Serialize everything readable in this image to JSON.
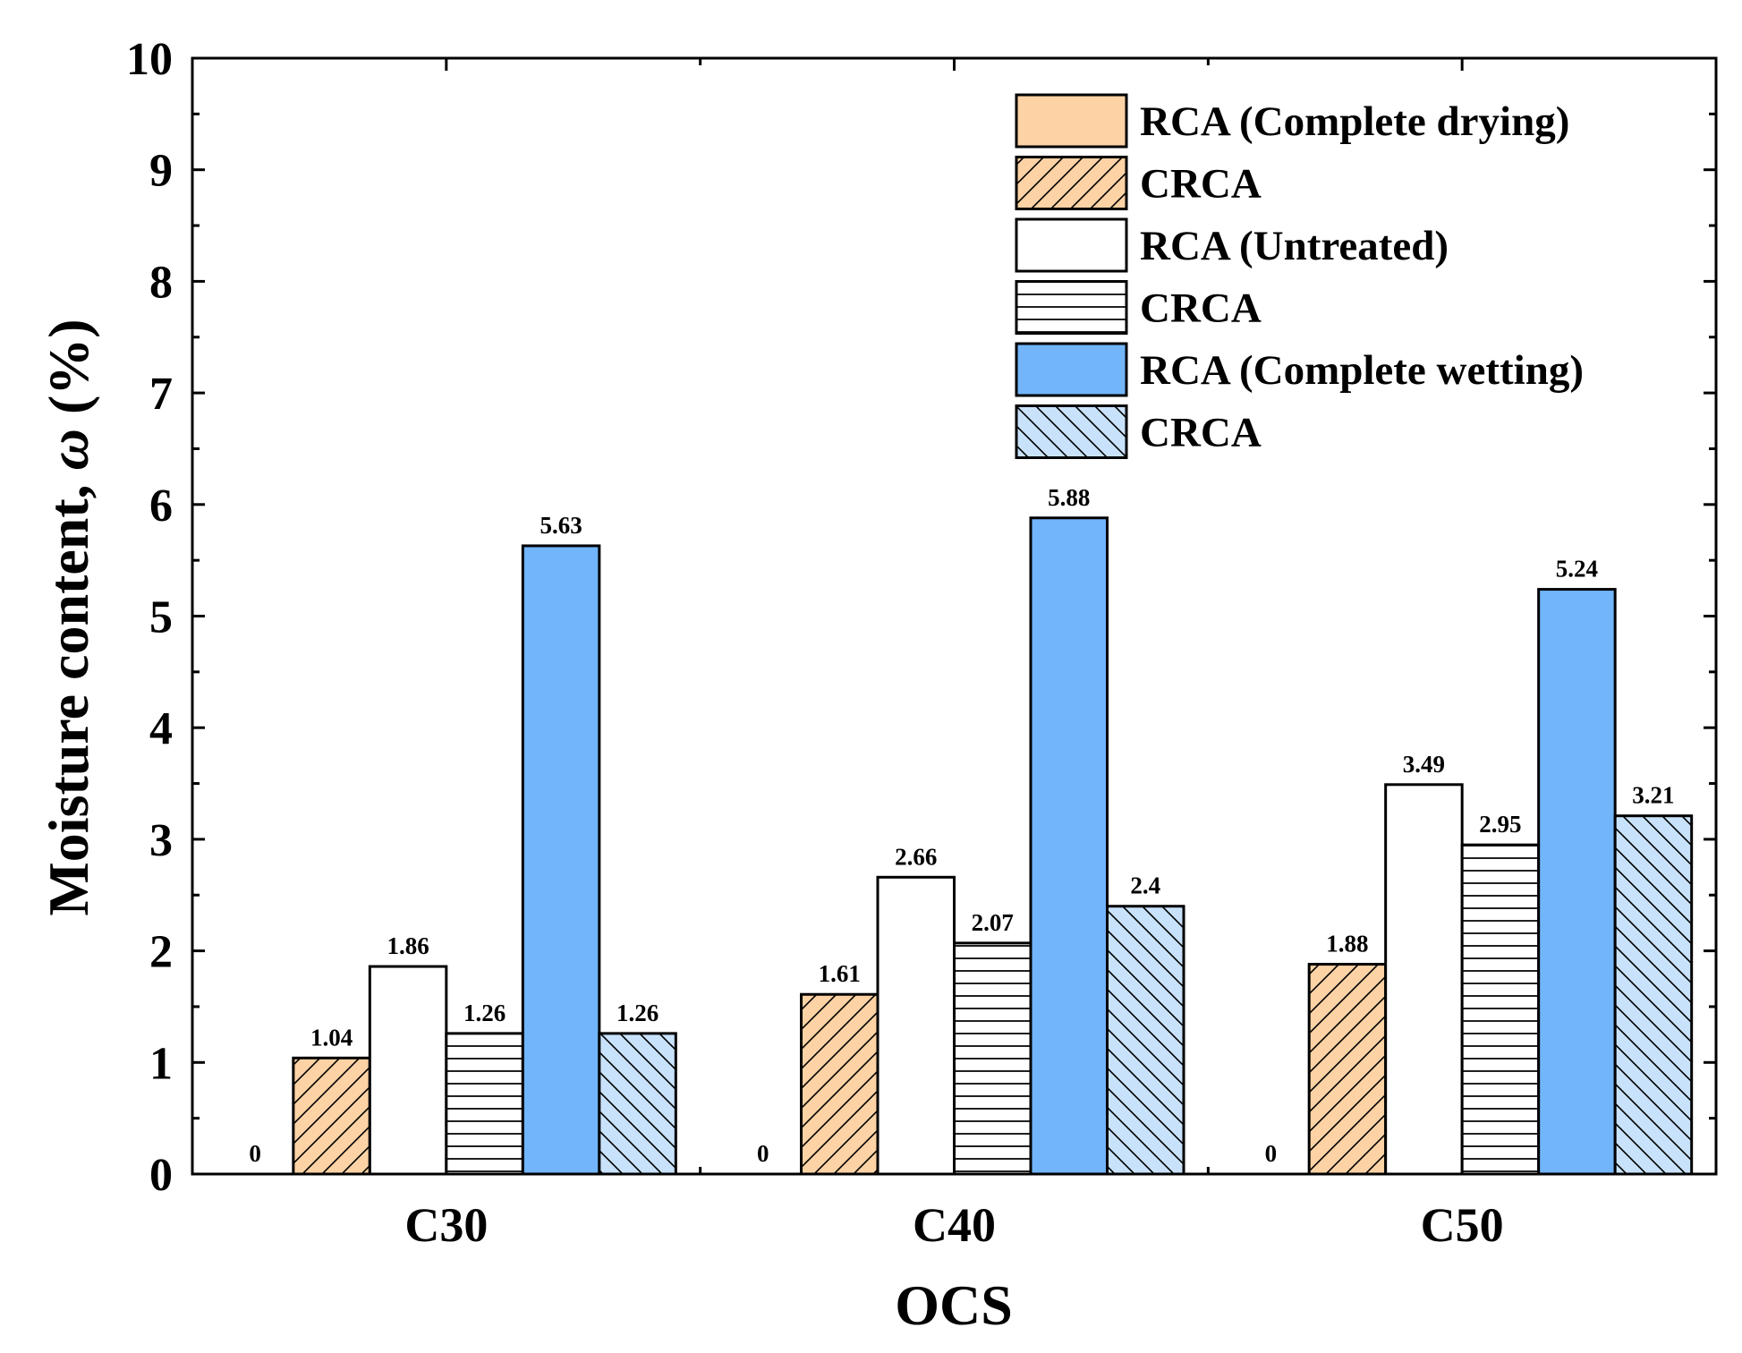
{
  "chart_data": {
    "type": "bar",
    "title": "",
    "xlabel": "OCS",
    "ylabel_prefix": "Moisture content, ",
    "ylabel_symbol": "ω",
    "ylabel_suffix": " (%)",
    "ylim": [
      0,
      10
    ],
    "y_ticks": [
      "0",
      "1",
      "2",
      "3",
      "4",
      "5",
      "6",
      "7",
      "8",
      "9",
      "10"
    ],
    "categories": [
      "C30",
      "C40",
      "C50"
    ],
    "legend_position": "top-right",
    "series": [
      {
        "name": "RCA (Complete drying)",
        "values": [
          0,
          0,
          0
        ],
        "labels": [
          "0",
          "0",
          "0"
        ],
        "fill": "#fdd2a4",
        "pattern": "solid"
      },
      {
        "name": "CRCA",
        "values": [
          1.04,
          1.61,
          1.88
        ],
        "labels": [
          "1.04",
          "1.61",
          "1.88"
        ],
        "fill": "#fdd2a4",
        "pattern": "diagonal-up"
      },
      {
        "name": "RCA (Untreated)",
        "values": [
          1.86,
          2.66,
          3.49
        ],
        "labels": [
          "1.86",
          "2.66",
          "3.49"
        ],
        "fill": "#ffffff",
        "pattern": "solid"
      },
      {
        "name": "CRCA",
        "values": [
          1.26,
          2.07,
          2.95
        ],
        "labels": [
          "1.26",
          "2.07",
          "2.95"
        ],
        "fill": "#ffffff",
        "pattern": "horizontal"
      },
      {
        "name": "RCA (Complete wetting)",
        "values": [
          5.63,
          5.88,
          5.24
        ],
        "labels": [
          "5.63",
          "5.88",
          "5.24"
        ],
        "fill": "#72b5fb",
        "pattern": "solid"
      },
      {
        "name": "CRCA",
        "values": [
          1.26,
          2.4,
          3.21
        ],
        "labels": [
          "1.26",
          "2.4",
          "3.21"
        ],
        "fill": "#c9e2fb",
        "pattern": "diagonal-down"
      }
    ]
  }
}
